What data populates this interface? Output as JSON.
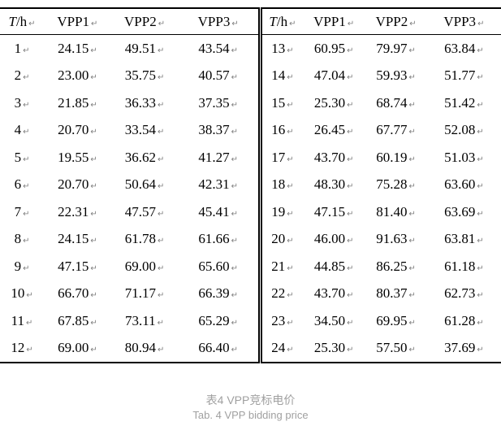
{
  "glyphs": {
    "paragraph_mark": "↵"
  },
  "colors": {
    "border": "#000000",
    "text": "#000000",
    "paragraph_mark": "#808080",
    "caption": "#a0a0a0"
  },
  "table": {
    "header": {
      "t_prefix": "T",
      "t_suffix": "/h",
      "cols": [
        "VPP1",
        "VPP2",
        "VPP3"
      ]
    },
    "left_rows": [
      {
        "t": "1",
        "vpp1": "24.15",
        "vpp2": "49.51",
        "vpp3": "43.54"
      },
      {
        "t": "2",
        "vpp1": "23.00",
        "vpp2": "35.75",
        "vpp3": "40.57"
      },
      {
        "t": "3",
        "vpp1": "21.85",
        "vpp2": "36.33",
        "vpp3": "37.35"
      },
      {
        "t": "4",
        "vpp1": "20.70",
        "vpp2": "33.54",
        "vpp3": "38.37"
      },
      {
        "t": "5",
        "vpp1": "19.55",
        "vpp2": "36.62",
        "vpp3": "41.27"
      },
      {
        "t": "6",
        "vpp1": "20.70",
        "vpp2": "50.64",
        "vpp3": "42.31"
      },
      {
        "t": "7",
        "vpp1": "22.31",
        "vpp2": "47.57",
        "vpp3": "45.41"
      },
      {
        "t": "8",
        "vpp1": "24.15",
        "vpp2": "61.78",
        "vpp3": "61.66"
      },
      {
        "t": "9",
        "vpp1": "47.15",
        "vpp2": "69.00",
        "vpp3": "65.60"
      },
      {
        "t": "10",
        "vpp1": "66.70",
        "vpp2": "71.17",
        "vpp3": "66.39"
      },
      {
        "t": "11",
        "vpp1": "67.85",
        "vpp2": "73.11",
        "vpp3": "65.29"
      },
      {
        "t": "12",
        "vpp1": "69.00",
        "vpp2": "80.94",
        "vpp3": "66.40"
      }
    ],
    "right_rows": [
      {
        "t": "13",
        "vpp1": "60.95",
        "vpp2": "79.97",
        "vpp3": "63.84"
      },
      {
        "t": "14",
        "vpp1": "47.04",
        "vpp2": "59.93",
        "vpp3": "51.77"
      },
      {
        "t": "15",
        "vpp1": "25.30",
        "vpp2": "68.74",
        "vpp3": "51.42"
      },
      {
        "t": "16",
        "vpp1": "26.45",
        "vpp2": "67.77",
        "vpp3": "52.08"
      },
      {
        "t": "17",
        "vpp1": "43.70",
        "vpp2": "60.19",
        "vpp3": "51.03"
      },
      {
        "t": "18",
        "vpp1": "48.30",
        "vpp2": "75.28",
        "vpp3": "63.60"
      },
      {
        "t": "19",
        "vpp1": "47.15",
        "vpp2": "81.40",
        "vpp3": "63.69"
      },
      {
        "t": "20",
        "vpp1": "46.00",
        "vpp2": "91.63",
        "vpp3": "63.81"
      },
      {
        "t": "21",
        "vpp1": "44.85",
        "vpp2": "86.25",
        "vpp3": "61.18"
      },
      {
        "t": "22",
        "vpp1": "43.70",
        "vpp2": "80.37",
        "vpp3": "62.73"
      },
      {
        "t": "23",
        "vpp1": "34.50",
        "vpp2": "69.95",
        "vpp3": "61.28"
      },
      {
        "t": "24",
        "vpp1": "25.30",
        "vpp2": "57.50",
        "vpp3": "37.69"
      }
    ]
  },
  "caption": {
    "zh": "表4 VPP竞标电价",
    "en": "Tab. 4 VPP bidding price"
  }
}
